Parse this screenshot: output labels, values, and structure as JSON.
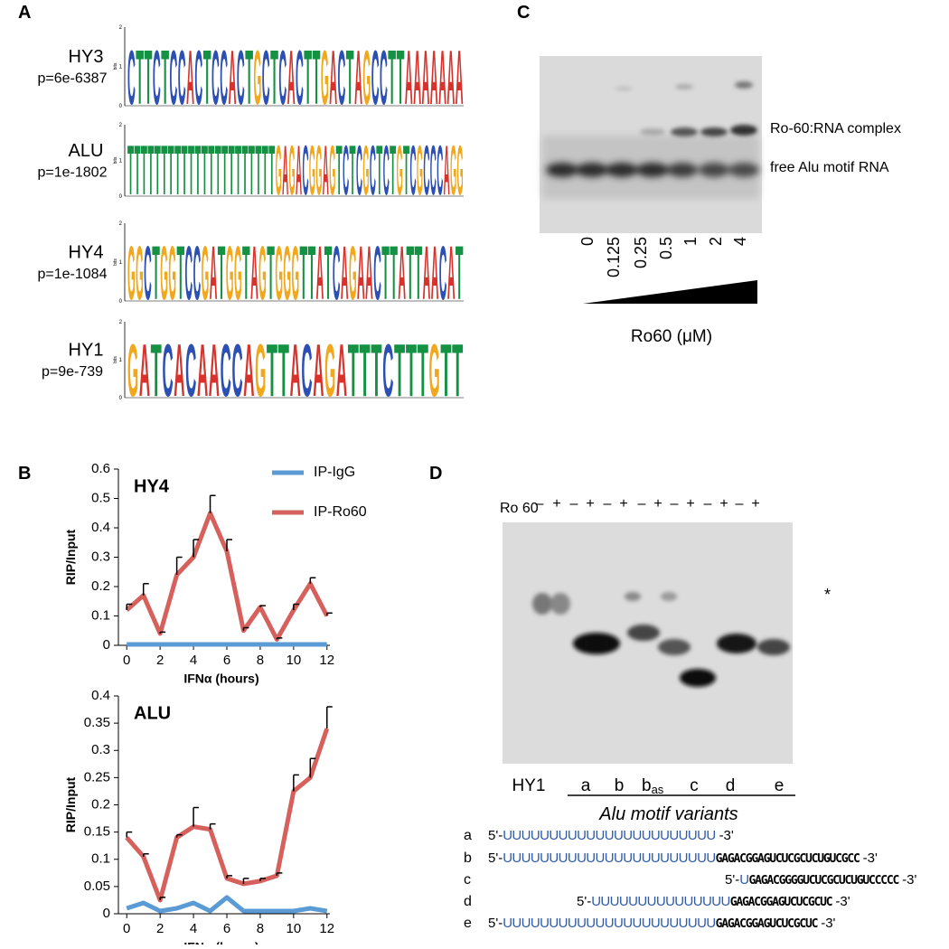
{
  "panel_labels": [
    "A",
    "B",
    "C",
    "D"
  ],
  "panel_a": {
    "bits_label": "bits",
    "bits_ticks": [
      0,
      1,
      2
    ],
    "logos": [
      {
        "name": "HY3",
        "p": "p=6e-6387",
        "letters": [
          "C",
          "T",
          "T",
          "C",
          "T",
          "C",
          "C",
          "A",
          "C",
          "T",
          "C",
          "C",
          "A",
          "C",
          "T",
          "G",
          "C",
          "T",
          "C",
          "A",
          "C",
          "T",
          "T",
          "G",
          "A",
          "C",
          "T",
          "A",
          "G",
          "C",
          "C",
          "T",
          "T",
          "A",
          "A",
          "A",
          "A",
          "A",
          "A",
          "A"
        ]
      },
      {
        "name": "ALU",
        "p": "p=1e-1802",
        "letters": [
          "T",
          "T",
          "T",
          "T",
          "T",
          "T",
          "T",
          "T",
          "T",
          "T",
          "T",
          "T",
          "T",
          "T",
          "T",
          "T",
          "T",
          "T",
          "T",
          "T",
          "T",
          "T",
          "G",
          "A",
          "G",
          "A",
          "C",
          "G",
          "G",
          "A",
          "G",
          "T",
          "C",
          "T",
          "C",
          "G",
          "C",
          "T",
          "C",
          "T",
          "G",
          "T",
          "C",
          "G",
          "C",
          "C",
          "C",
          "A",
          "G",
          "G"
        ]
      },
      {
        "name": "HY4",
        "p": "p=1e-1084",
        "letters": [
          "G",
          "G",
          "C",
          "T",
          "G",
          "G",
          "T",
          "C",
          "C",
          "G",
          "A",
          "T",
          "G",
          "G",
          "T",
          "A",
          "G",
          "T",
          "G",
          "G",
          "G",
          "T",
          "T",
          "A",
          "T",
          "C",
          "A",
          "G",
          "A",
          "A",
          "C",
          "T",
          "T",
          "A",
          "T",
          "T",
          "A",
          "A",
          "C",
          "A",
          "T"
        ]
      },
      {
        "name": "HY1",
        "p": "p=9e-739",
        "letters": [
          "G",
          "A",
          "T",
          "C",
          "A",
          "C",
          "A",
          "A",
          "C",
          "C",
          "A",
          "G",
          "T",
          "T",
          "A",
          "C",
          "A",
          "G",
          "A",
          "T",
          "T",
          "T",
          "C",
          "T",
          "T",
          "T",
          "G",
          "T",
          "T"
        ]
      }
    ]
  },
  "chart_data": [
    {
      "type": "line",
      "title": "HY4",
      "xlabel": "IFNα (hours)",
      "ylabel": "RIP/Input",
      "x": [
        0,
        1,
        2,
        3,
        4,
        5,
        6,
        7,
        8,
        9,
        10,
        11,
        12
      ],
      "xlim": [
        -0.5,
        12.5
      ],
      "xticks": [
        0,
        2,
        4,
        6,
        8,
        10,
        12
      ],
      "ylim": [
        0,
        0.6
      ],
      "yticks": [
        0,
        0.1,
        0.2,
        0.3,
        0.4,
        0.5,
        0.6
      ],
      "legend": "top-right",
      "series": [
        {
          "name": "IP-IgG",
          "color": "#5b9bd5",
          "values": [
            0.003,
            0.003,
            0.003,
            0.003,
            0.003,
            0.003,
            0.003,
            0.003,
            0.003,
            0.003,
            0.003,
            0.003,
            0.003
          ]
        },
        {
          "name": "IP-Ro60",
          "color": "#d6605c",
          "values": [
            0.12,
            0.17,
            0.04,
            0.24,
            0.3,
            0.45,
            0.32,
            0.05,
            0.13,
            0.02,
            0.12,
            0.21,
            0.1
          ],
          "errors": [
            0.02,
            0.04,
            0.005,
            0.06,
            0.06,
            0.06,
            0.04,
            0.01,
            0.005,
            0.005,
            0.02,
            0.02,
            0.01
          ]
        }
      ]
    },
    {
      "type": "line",
      "title": "ALU",
      "xlabel": "IFNα (hours)",
      "ylabel": "RIP/Input",
      "x": [
        0,
        1,
        2,
        3,
        4,
        5,
        6,
        7,
        8,
        9,
        10,
        11,
        12
      ],
      "xlim": [
        -0.5,
        12.5
      ],
      "xticks": [
        0,
        2,
        4,
        6,
        8,
        10,
        12
      ],
      "ylim": [
        0,
        0.4
      ],
      "yticks": [
        0,
        0.05,
        0.1,
        0.15,
        0.2,
        0.25,
        0.3,
        0.35,
        0.4
      ],
      "series": [
        {
          "color": "#5b9bd5",
          "values": [
            0.01,
            0.02,
            0.005,
            0.01,
            0.02,
            0.005,
            0.03,
            0.005,
            0.005,
            0.005,
            0.005,
            0.01,
            0.005
          ]
        },
        {
          "color": "#d6605c",
          "values": [
            0.14,
            0.105,
            0.025,
            0.14,
            0.16,
            0.155,
            0.065,
            0.055,
            0.06,
            0.07,
            0.225,
            0.25,
            0.34
          ],
          "errors": [
            0.01,
            0.005,
            0.005,
            0.005,
            0.035,
            0.01,
            0.005,
            0.01,
            0.005,
            0.005,
            0.03,
            0.035,
            0.04
          ]
        }
      ]
    }
  ],
  "panel_c": {
    "concentrations": [
      0,
      0.125,
      0.25,
      0.5,
      1,
      2,
      4
    ],
    "band_labels": [
      "Ro-60:RNA complex",
      "free Alu motif RNA"
    ],
    "axis_label": "Ro60 (μM)"
  },
  "panel_d": {
    "ro60_label": "Ro 60",
    "lane_signs": [
      "–",
      "+",
      "–",
      "+",
      "–",
      "+",
      "–",
      "+",
      "–",
      "+",
      "–",
      "+",
      "–",
      "+"
    ],
    "star": "*",
    "lanes": [
      "HY1",
      "a",
      "b",
      {
        "base": "b",
        "sub": "as"
      },
      "c",
      "d",
      "e"
    ],
    "group_label": "Alu motif variants",
    "sequences": [
      {
        "id": "a",
        "prefix": "5'-",
        "u": "UUUUUUUUUUUUUUUUUUUUUUU",
        "suffix": "-3'"
      },
      {
        "id": "b",
        "prefix": "5'-",
        "u": "UUUUUUUUUUUUUUUUUUUUUUU",
        "rest": "GAGACGGAGUCUCGCUCUGUCGCC",
        "suffix": "-3'"
      },
      {
        "id": "c",
        "prefix": "5'-",
        "u": "U",
        "rest": "GAGACGGGGUCUCGCUCUGUCCCCC",
        "suffix": "-3'"
      },
      {
        "id": "d",
        "prefix": "5'-",
        "u": "UUUUUUUUUUUUUUU",
        "rest": "GAGACGGAGUCUCGCUC",
        "suffix": "-3'"
      },
      {
        "id": "e",
        "prefix": "5'-",
        "u": "UUUUUUUUUUUUUUUUUUUUUUU",
        "rest": "GAGACGGAGUCUCGCUC",
        "suffix": "-3'"
      }
    ]
  }
}
